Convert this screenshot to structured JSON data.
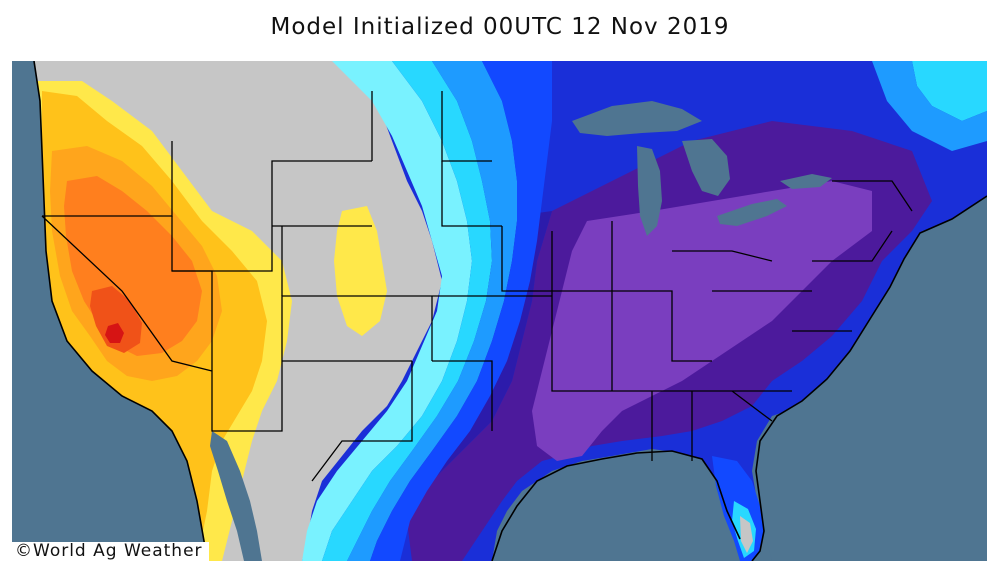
{
  "title": "Model Initialized 00UTC 12 Nov 2019",
  "credit": "©World Ag Weather",
  "colors": {
    "ocean": "#4f7591",
    "great_lakes": "#4f7591",
    "gray_zone": "#c6c6c6",
    "light_yellow": "#ffe84a",
    "yellow": "#ffc21a",
    "light_orange": "#ffa51c",
    "orange": "#ff7f1e",
    "red_orange": "#f05218",
    "red": "#d61414",
    "light_cyan": "#79f2ff",
    "cyan": "#28d8ff",
    "sky_blue": "#1e9bff",
    "blue": "#1249ff",
    "dark_blue": "#1a2fd8",
    "deep_blue": "#2c1bab",
    "purple": "#4c1a9c",
    "light_purple": "#7a3ebf",
    "border": "#000000"
  }
}
